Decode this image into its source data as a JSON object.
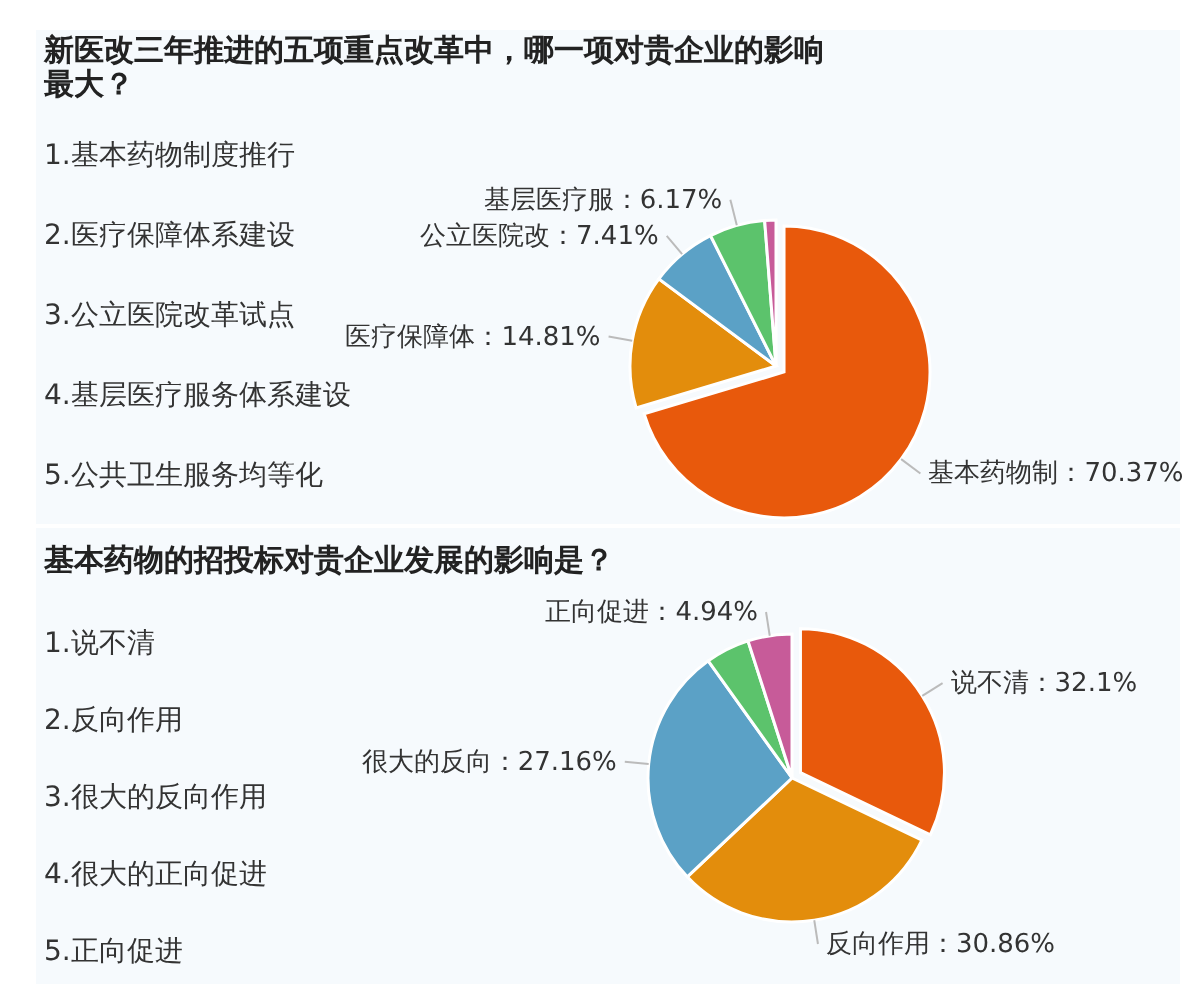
{
  "chart_data": [
    {
      "type": "pie",
      "title": "新医改三年推进的五项重点改革中，哪一项对贵企业的影响最大？",
      "annotations": [
        "1.基本药物制度推行",
        "2.医疗保障体系建设",
        "3.公立医院改革试点",
        "4.基层医疗服务体系建设",
        "5.公共卫生服务均等化"
      ],
      "categories": [
        "基本药物制",
        "医疗保障体",
        "公立医院改",
        "基层医疗服",
        null
      ],
      "values": [
        70.37,
        14.81,
        7.41,
        6.17,
        1.24
      ],
      "colors": [
        "#e8590c",
        "#e38d0c",
        "#5ba1c6",
        "#5cc36c",
        "#c75b99"
      ],
      "value_labels": [
        "：70.37%",
        "：14.81%",
        "：7.41%",
        "：6.17%",
        null
      ]
    },
    {
      "type": "pie",
      "title": "基本药物的招投标对贵企业发展的影响是？",
      "annotations": [
        "1.说不清",
        "2.反向作用",
        "3.很大的反向作用",
        "4.很大的正向促进",
        "5.正向促进"
      ],
      "categories": [
        "说不清",
        "反向作用",
        "很大的反向",
        null,
        "正向促进"
      ],
      "values": [
        32.1,
        30.86,
        27.16,
        4.94,
        4.94
      ],
      "colors": [
        "#e8590c",
        "#e38d0c",
        "#5ba1c6",
        "#5cc36c",
        "#c75b99"
      ],
      "value_labels": [
        "：32.1%",
        "：30.86%",
        "：27.16%",
        null,
        "：4.94%"
      ]
    }
  ]
}
